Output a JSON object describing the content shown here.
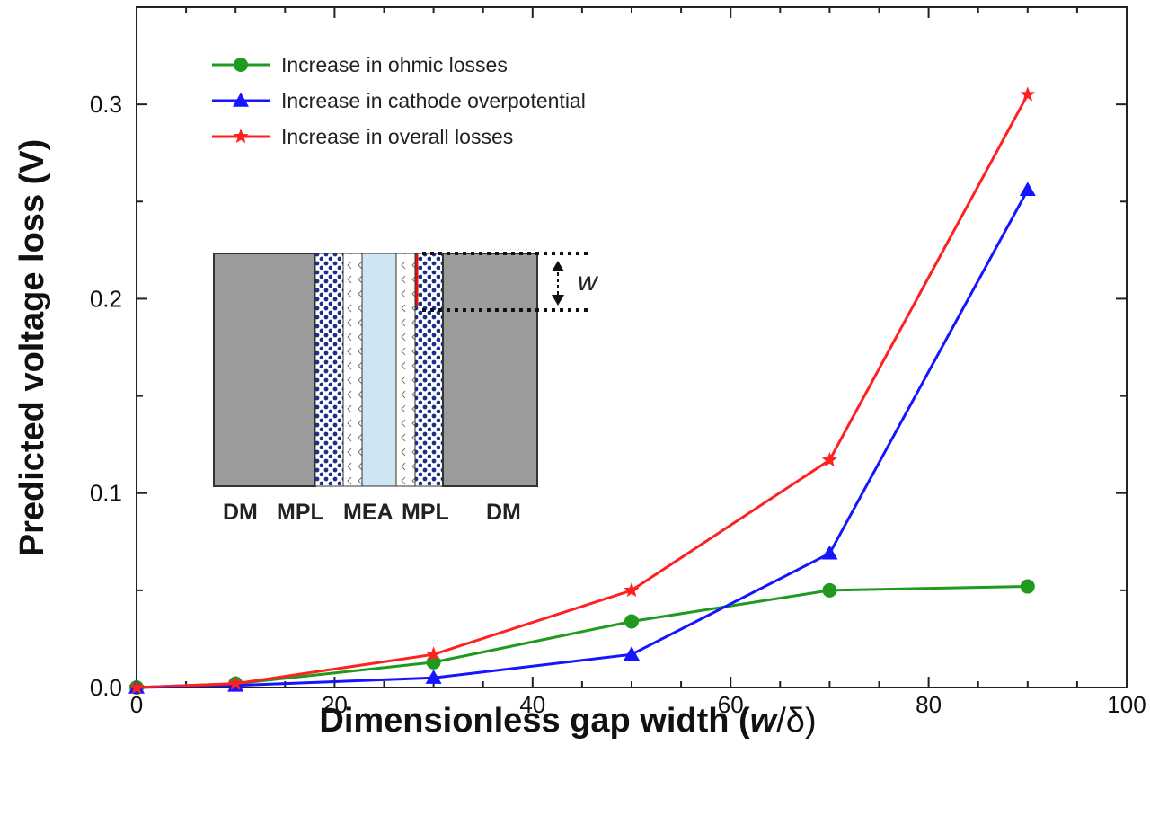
{
  "chart_data": {
    "type": "line",
    "x": [
      0,
      10,
      30,
      50,
      70,
      90
    ],
    "series": [
      {
        "name": "Increase in ohmic losses",
        "color": "#1f9a1f",
        "marker": "circle",
        "values": [
          0.0,
          0.002,
          0.013,
          0.034,
          0.05,
          0.052
        ]
      },
      {
        "name": "Increase in cathode overpotential",
        "color": "#1515ff",
        "marker": "triangle",
        "values": [
          0.0,
          0.001,
          0.005,
          0.017,
          0.069,
          0.256
        ]
      },
      {
        "name": "Increase in overall losses",
        "color": "#ff2020",
        "marker": "star",
        "values": [
          0.0,
          0.002,
          0.017,
          0.05,
          0.117,
          0.305
        ]
      }
    ],
    "xlim": [
      0,
      100
    ],
    "ylim": [
      0,
      0.35
    ],
    "xticks": [
      0,
      20,
      40,
      60,
      80,
      100
    ],
    "xtick_labels": [
      "0",
      "20",
      "40",
      "60",
      "80",
      "100"
    ],
    "yticks": [
      0.0,
      0.1,
      0.2,
      0.3
    ],
    "ytick_labels": [
      "0.0",
      "0.1",
      "0.2",
      "0.3"
    ],
    "xlabel_main": "Dimensionless gap width (",
    "xlabel_var": "w",
    "xlabel_tail": "/δ)",
    "ylabel": "Predicted voltage loss (V)",
    "legend_position": "top-left",
    "inset": {
      "layer_labels": [
        "DM",
        "MPL",
        "MEA",
        "MPL",
        "DM"
      ],
      "gap_symbol": "w"
    }
  }
}
